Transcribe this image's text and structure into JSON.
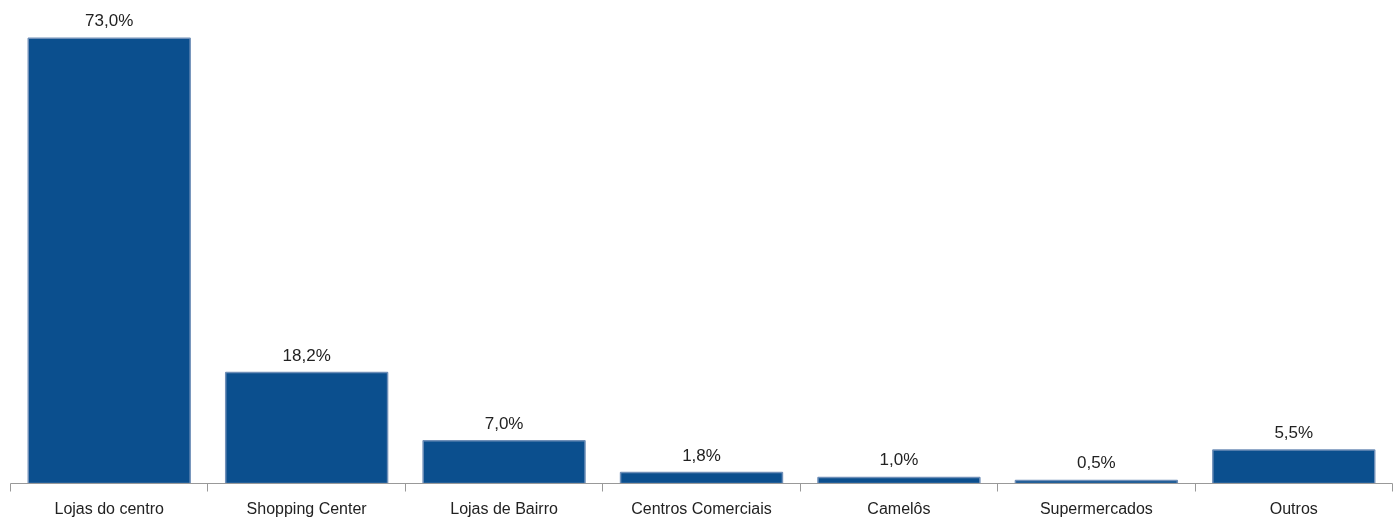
{
  "chart_data": {
    "type": "bar",
    "categories": [
      "Lojas do centro",
      "Shopping Center",
      "Lojas de Bairro",
      "Centros Comerciais",
      "Camelôs",
      "Supermercados",
      "Outros"
    ],
    "values": [
      73.0,
      18.2,
      7.0,
      1.8,
      1.0,
      0.5,
      5.5
    ],
    "value_labels": [
      "73,0%",
      "18,2%",
      "7,0%",
      "1,8%",
      "1,0%",
      "0,5%",
      "5,5%"
    ],
    "color": "#0b4f8e",
    "grid": false
  }
}
